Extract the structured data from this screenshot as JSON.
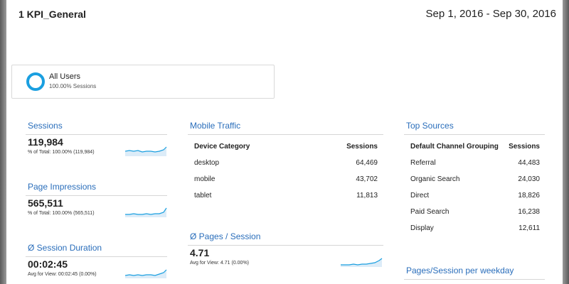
{
  "header": {
    "title": "1 KPI_General",
    "date_range": "Sep 1, 2016 - Sep 30, 2016"
  },
  "segment": {
    "name": "All Users",
    "subtitle": "100.00% Sessions",
    "color": "#1a9fe0"
  },
  "kpis": {
    "sessions": {
      "title": "Sessions",
      "value": "119,984",
      "note": "% of Total: 100.00% (119,984)"
    },
    "page_impressions": {
      "title": "Page Impressions",
      "value": "565,511",
      "note": "% of Total: 100.00% (565,511)"
    },
    "session_duration": {
      "title": "Ø Session Duration",
      "value": "00:02:45",
      "note": "Avg for View: 00:02:45 (0.00%)"
    },
    "pages_per_session": {
      "title": "Ø Pages / Session",
      "value": "4.71",
      "note": "Avg for View: 4.71 (0.00%)"
    }
  },
  "mobile_traffic": {
    "title": "Mobile Traffic",
    "columns": [
      "Device Category",
      "Sessions"
    ],
    "rows": [
      [
        "desktop",
        "64,469"
      ],
      [
        "mobile",
        "43,702"
      ],
      [
        "tablet",
        "11,813"
      ]
    ]
  },
  "top_sources": {
    "title": "Top Sources",
    "columns": [
      "Default Channel Grouping",
      "Sessions"
    ],
    "rows": [
      [
        "Referral",
        "44,483"
      ],
      [
        "Organic Search",
        "24,030"
      ],
      [
        "Direct",
        "18,826"
      ],
      [
        "Paid Search",
        "16,238"
      ],
      [
        "Display",
        "12,611"
      ]
    ]
  },
  "weekday": {
    "title": "Pages/Session per weekday"
  },
  "colors": {
    "accent": "#2a6ebb",
    "spark_line": "#1a9fe0",
    "spark_fill": "#dcecf8"
  }
}
